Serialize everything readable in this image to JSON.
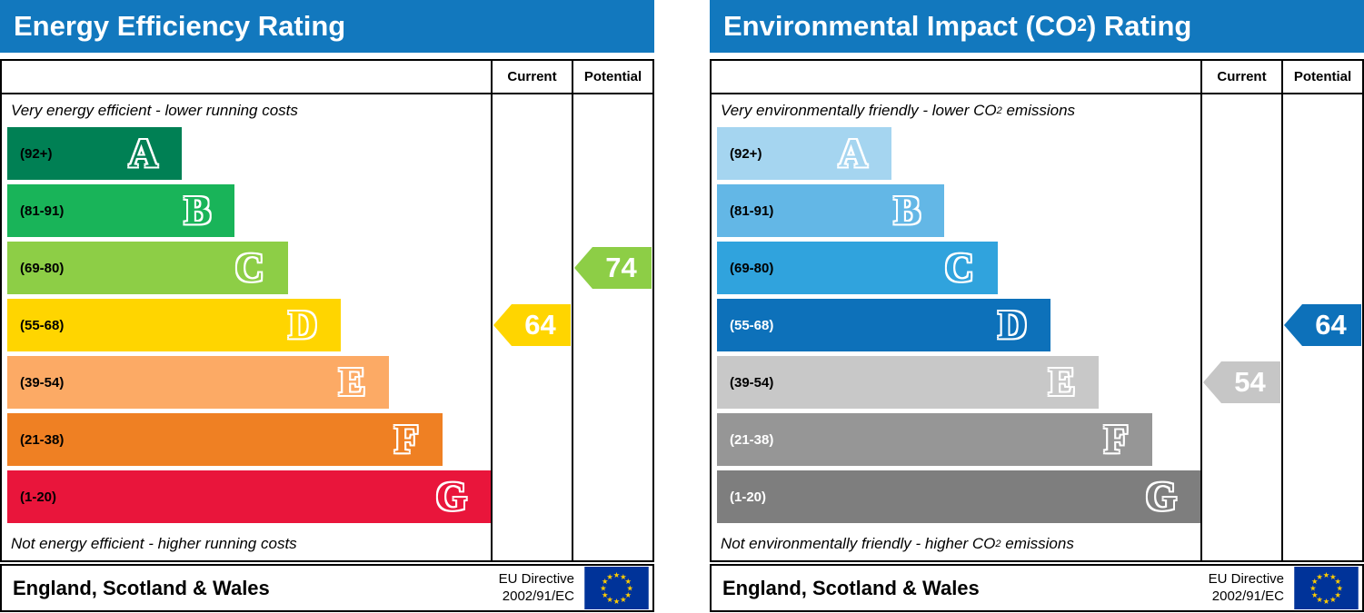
{
  "chart_data": [
    {
      "type": "bar",
      "id": "energy-efficiency",
      "title": {
        "pre": "Energy Efficiency Rating",
        "sub": "",
        "post": ""
      },
      "header_bg": "#1278be",
      "col_current": "Current",
      "col_potential": "Potential",
      "top_note": {
        "pre": "Very energy efficient - lower running costs",
        "sub": "",
        "post": ""
      },
      "bottom_note": {
        "pre": "Not energy efficient - higher running costs",
        "sub": "",
        "post": ""
      },
      "bands": [
        {
          "label": "A",
          "range": "(92+)",
          "color": "#008054",
          "width": "36%",
          "label_color": "#000000"
        },
        {
          "label": "B",
          "range": "(81-91)",
          "color": "#19b459",
          "width": "47%",
          "label_color": "#000000"
        },
        {
          "label": "C",
          "range": "(69-80)",
          "color": "#8dce46",
          "width": "58%",
          "label_color": "#000000"
        },
        {
          "label": "D",
          "range": "(55-68)",
          "color": "#ffd500",
          "width": "69%",
          "label_color": "#000000"
        },
        {
          "label": "E",
          "range": "(39-54)",
          "color": "#fcaa65",
          "width": "79%",
          "label_color": "#000000"
        },
        {
          "label": "F",
          "range": "(21-38)",
          "color": "#ef8023",
          "width": "90%",
          "label_color": "#000000"
        },
        {
          "label": "G",
          "range": "(1-20)",
          "color": "#e9153b",
          "width": "100%",
          "label_color": "#000000"
        }
      ],
      "current": {
        "value": 64,
        "band_row": 3,
        "color": "#ffd500"
      },
      "potential": {
        "value": 74,
        "band_row": 2,
        "color": "#8dce46"
      },
      "footer": {
        "region": "England, Scotland & Wales",
        "directive1": "EU Directive",
        "directive2": "2002/91/EC"
      },
      "eu_flag": {
        "bg": "#003399",
        "star": "#ffcc00"
      }
    },
    {
      "type": "bar",
      "id": "environmental-impact-co2",
      "title": {
        "pre": "Environmental Impact (CO",
        "sub": "2",
        "post": ") Rating"
      },
      "header_bg": "#1278be",
      "col_current": "Current",
      "col_potential": "Potential",
      "top_note": {
        "pre": "Very environmentally friendly - lower CO",
        "sub": "2",
        "post": " emissions"
      },
      "bottom_note": {
        "pre": "Not environmentally friendly - higher CO",
        "sub": "2",
        "post": " emissions"
      },
      "bands": [
        {
          "label": "A",
          "range": "(92+)",
          "color": "#a5d5f0",
          "width": "36%",
          "label_color": "#000000"
        },
        {
          "label": "B",
          "range": "(81-91)",
          "color": "#63b7e6",
          "width": "47%",
          "label_color": "#000000"
        },
        {
          "label": "C",
          "range": "(69-80)",
          "color": "#30a3dd",
          "width": "58%",
          "label_color": "#000000"
        },
        {
          "label": "D",
          "range": "(55-68)",
          "color": "#0d71ba",
          "width": "69%",
          "label_color": "#ffffff"
        },
        {
          "label": "E",
          "range": "(39-54)",
          "color": "#c8c8c8",
          "width": "79%",
          "label_color": "#000000"
        },
        {
          "label": "F",
          "range": "(21-38)",
          "color": "#969696",
          "width": "90%",
          "label_color": "#ffffff"
        },
        {
          "label": "G",
          "range": "(1-20)",
          "color": "#7e7e7e",
          "width": "100%",
          "label_color": "#ffffff"
        }
      ],
      "current": {
        "value": 54,
        "band_row": 4,
        "color": "#c6c6c6"
      },
      "potential": {
        "value": 64,
        "band_row": 3,
        "color": "#0d71ba"
      },
      "footer": {
        "region": "England, Scotland & Wales",
        "directive1": "EU Directive",
        "directive2": "2002/91/EC"
      },
      "eu_flag": {
        "bg": "#003399",
        "star": "#ffcc00"
      }
    }
  ]
}
